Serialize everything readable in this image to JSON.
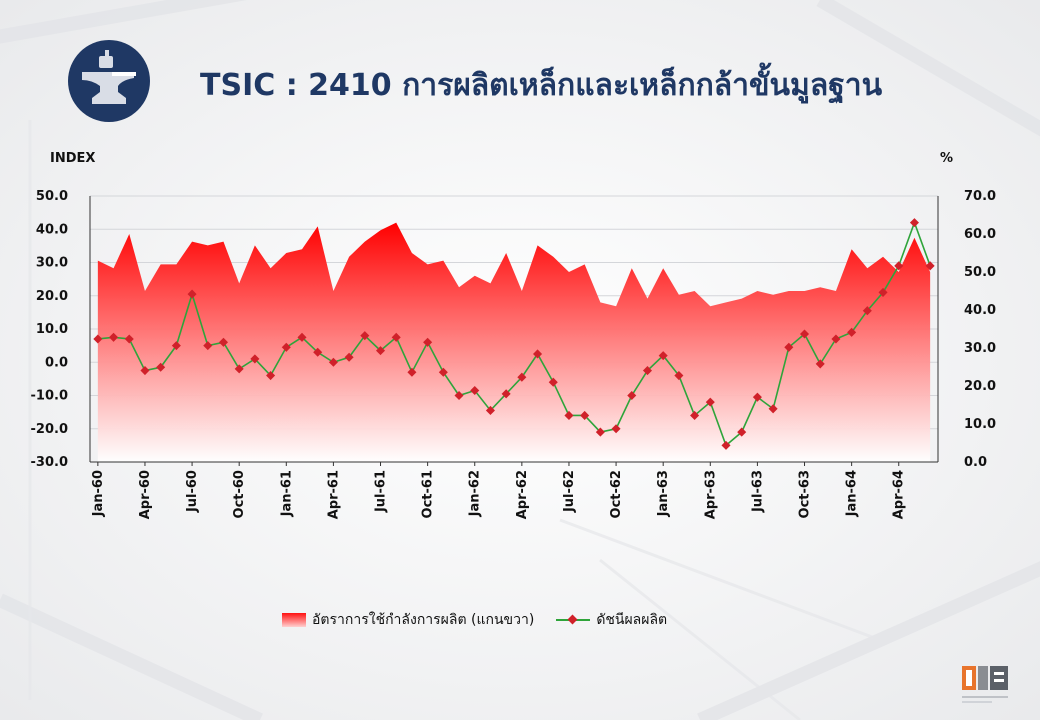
{
  "page": {
    "title": "TSIC : 2410 การผลิตเหล็กและเหล็กกล้าขั้นมูลฐาน",
    "left_unit": "INDEX",
    "right_unit": "%",
    "legend_area": "อัตราการใช้กำลังการผลิต (แกนขวา)",
    "legend_line": "ดัชนีผลผลิต"
  },
  "colors": {
    "title": "#1f3864",
    "logo_bg": "#1f3864",
    "area_top": "#ff0000",
    "area_bottom": "#ffffff",
    "line": "#2ea43a",
    "marker": "#d0212a"
  },
  "icons": {
    "logo": "anvil-icon",
    "footer_logo": "oie-logo-icon"
  },
  "chart_data": {
    "type": "line",
    "categories": [
      "Jan-60",
      "Feb-60",
      "Mar-60",
      "Apr-60",
      "May-60",
      "Jun-60",
      "Jul-60",
      "Aug-60",
      "Sep-60",
      "Oct-60",
      "Nov-60",
      "Dec-60",
      "Jan-61",
      "Feb-61",
      "Mar-61",
      "Apr-61",
      "May-61",
      "Jun-61",
      "Jul-61",
      "Aug-61",
      "Sep-61",
      "Oct-61",
      "Nov-61",
      "Dec-61",
      "Jan-62",
      "Feb-62",
      "Mar-62",
      "Apr-62",
      "May-62",
      "Jun-62",
      "Jul-62",
      "Aug-62",
      "Sep-62",
      "Oct-62",
      "Nov-62",
      "Dec-62",
      "Jan-63",
      "Feb-63",
      "Mar-63",
      "Apr-63",
      "May-63",
      "Jun-63",
      "Jul-63",
      "Aug-63",
      "Sep-63",
      "Oct-63",
      "Nov-63",
      "Dec-63",
      "Jan-64",
      "Feb-64",
      "Mar-64",
      "Apr-64",
      "May-64",
      "Jun-64"
    ],
    "x_tick_labels": [
      "Jan-60",
      "Apr-60",
      "Jul-60",
      "Oct-60",
      "Jan-61",
      "Apr-61",
      "Jul-61",
      "Oct-61",
      "Jan-62",
      "Apr-62",
      "Jul-62",
      "Oct-62",
      "Jan-63",
      "Apr-63",
      "Jul-63",
      "Oct-63",
      "Jan-64",
      "Apr-64"
    ],
    "left_axis": {
      "ylim": [
        -30,
        50
      ],
      "ticks": [
        "50.0",
        "40.0",
        "30.0",
        "20.0",
        "10.0",
        "0.0",
        "-10.0",
        "-20.0",
        "-30.0"
      ]
    },
    "right_axis": {
      "ylim": [
        0,
        70
      ],
      "ticks": [
        "70.0",
        "60.0",
        "50.0",
        "40.0",
        "30.0",
        "20.0",
        "10.0",
        "0.0"
      ]
    },
    "series": [
      {
        "name": "อัตราการใช้กำลังการผลิต (แกนขวา)",
        "type": "area",
        "axis": "right",
        "values": [
          53,
          51,
          60,
          45,
          52,
          52,
          58,
          57,
          58,
          47,
          57,
          51,
          55,
          56,
          62,
          45,
          54,
          58,
          61,
          63,
          55,
          52,
          53,
          46,
          49,
          47,
          55,
          45,
          57,
          54,
          50,
          52,
          42,
          41,
          51,
          43,
          51,
          44,
          45,
          41,
          42,
          43,
          45,
          44,
          45,
          45,
          46,
          45,
          56,
          51,
          54,
          50,
          59,
          50
        ]
      },
      {
        "name": "ดัชนีผลผลิต",
        "type": "line",
        "axis": "left",
        "values": [
          7,
          7.5,
          7,
          -2.5,
          -1.5,
          5,
          20.5,
          5,
          6,
          -2,
          1,
          -4,
          4.5,
          7.5,
          3,
          0,
          1.5,
          8,
          3.5,
          7.5,
          -3,
          6,
          -3,
          -10,
          -8.5,
          -14.5,
          -9.5,
          -4.5,
          2.5,
          -6,
          -16,
          -16,
          -21,
          -20,
          -10,
          -2.5,
          2,
          -4,
          -16,
          -12,
          -25,
          -21,
          -10.5,
          -14,
          4.5,
          8.5,
          -0.5,
          7,
          9,
          15.5,
          21,
          29,
          42,
          29
        ]
      }
    ]
  }
}
